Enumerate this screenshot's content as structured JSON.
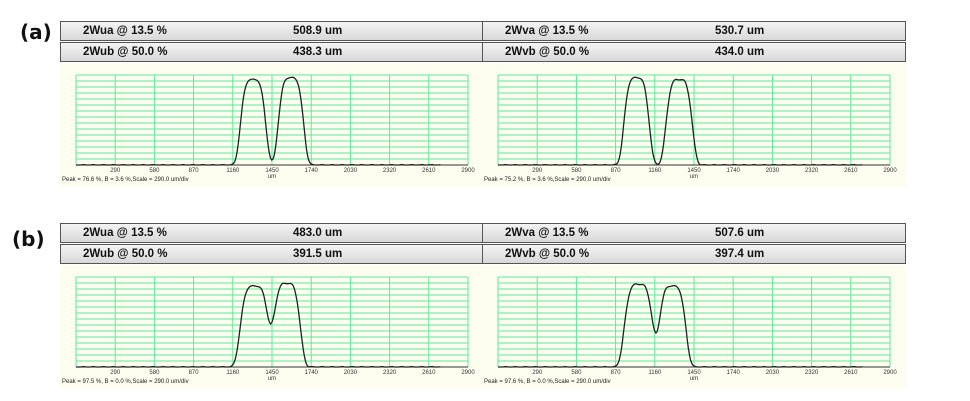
{
  "labels": [
    "(a)",
    "(b)"
  ],
  "panels": [
    {
      "rows": [
        [
          "2Wua @ 13.5 %",
          "508.9 um"
        ],
        [
          "2Wub @ 50.0 %",
          "438.3 um"
        ]
      ],
      "footer": "Peak = 76.6 %, B = 3.6 %,Scale = 290.0 um/div"
    },
    {
      "rows": [
        [
          "2Wva @ 13.5 %",
          "530.7 um"
        ],
        [
          "2Wvb @ 50.0 %",
          "434.0 um"
        ]
      ],
      "footer": "Peak = 75.2 %, B = 3.6 %,Scale = 290.0 um/div"
    },
    {
      "rows": [
        [
          "2Wua @ 13.5 %",
          "483.0 um"
        ],
        [
          "2Wub @ 50.0 %",
          "391.5 um"
        ]
      ],
      "footer": "Peak = 97.5 %, B = 0.0 %,Scale = 290.0 um/div"
    },
    {
      "rows": [
        [
          "2Wva @ 13.5 %",
          "507.6 um"
        ],
        [
          "2Wvb @ 50.0 %",
          "397.4 um"
        ]
      ],
      "footer": "Peak = 97.6 %, B = 0.0 %,Scale = 290.0 um/div"
    }
  ],
  "chart_data": [
    {
      "type": "line",
      "xlabel": "um",
      "xlim": [
        0,
        2900
      ],
      "xticks": [
        290,
        580,
        870,
        1160,
        1450,
        1740,
        2030,
        2320,
        2610,
        2900
      ],
      "grid": true,
      "peaks": [
        {
          "center": 1310,
          "sigma": 75,
          "amp": 0.95
        },
        {
          "center": 1590,
          "sigma": 75,
          "amp": 0.97
        }
      ]
    },
    {
      "type": "line",
      "xlabel": "um",
      "xlim": [
        0,
        2900
      ],
      "xticks": [
        290,
        580,
        870,
        1160,
        1450,
        1740,
        2030,
        2320,
        2610,
        2900
      ],
      "grid": true,
      "peaks": [
        {
          "center": 1025,
          "sigma": 75,
          "amp": 0.97
        },
        {
          "center": 1340,
          "sigma": 78,
          "amp": 0.95
        }
      ]
    },
    {
      "type": "line",
      "xlabel": "um",
      "xlim": [
        0,
        2900
      ],
      "xticks": [
        290,
        580,
        870,
        1160,
        1450,
        1740,
        2030,
        2320,
        2610,
        2900
      ],
      "grid": true,
      "peaks": [
        {
          "center": 1320,
          "sigma": 85,
          "amp": 0.9
        },
        {
          "center": 1560,
          "sigma": 80,
          "amp": 0.93
        }
      ]
    },
    {
      "type": "line",
      "xlabel": "um",
      "xlim": [
        0,
        2900
      ],
      "xticks": [
        290,
        580,
        870,
        1160,
        1450,
        1740,
        2030,
        2320,
        2610,
        2900
      ],
      "grid": true,
      "peaks": [
        {
          "center": 1040,
          "sigma": 85,
          "amp": 0.92
        },
        {
          "center": 1290,
          "sigma": 80,
          "amp": 0.9
        }
      ]
    }
  ],
  "colors": {
    "grid": "#5fe89a",
    "curve": "#222222",
    "plot_bg": "#fefef0"
  }
}
